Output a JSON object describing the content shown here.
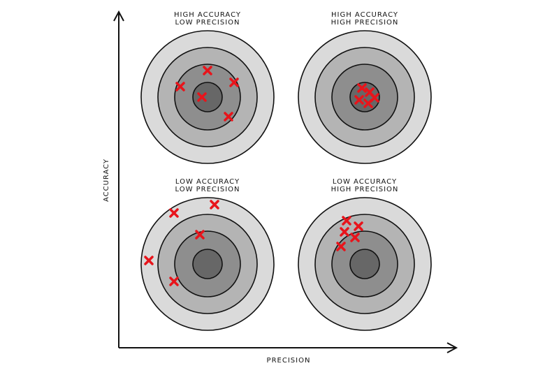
{
  "axes": {
    "y_label": "ACCURACY",
    "x_label": "PRECISION"
  },
  "panels": [
    {
      "title": [
        "HIGH ACCURACY",
        "LOW PRECISION"
      ]
    },
    {
      "title": [
        "HIGH ACCURACY",
        "HIGH PRECISION"
      ]
    },
    {
      "title": [
        "LOW ACCURACY",
        "LOW PRECISION"
      ]
    },
    {
      "title": [
        "LOW ACCURACY",
        "HIGH PRECISION"
      ]
    }
  ]
}
